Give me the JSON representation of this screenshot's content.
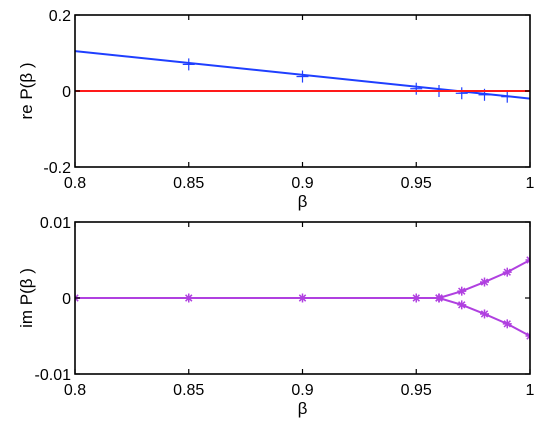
{
  "chart_data": [
    {
      "type": "line",
      "xlabel": "β",
      "ylabel": "re P(β )",
      "xlim": [
        0.8,
        1.0
      ],
      "ylim": [
        -0.2,
        0.2
      ],
      "x_ticks": [
        "0.8",
        "0.85",
        "0.9",
        "0.95",
        "1"
      ],
      "y_ticks": [
        "-0.2",
        "0",
        "0.2"
      ],
      "grid": false,
      "legend": "none",
      "series": [
        {
          "color": "#1f3fff",
          "marker": "plus",
          "line_x": [
            0.8,
            1.0
          ],
          "line_y": [
            0.105,
            -0.02
          ],
          "x": [
            0.85,
            0.9,
            0.95,
            0.96,
            0.97,
            0.98,
            0.99
          ],
          "y": [
            0.07,
            0.038,
            0.006,
            0.0,
            -0.006,
            -0.01,
            -0.015
          ]
        },
        {
          "color": "#ff1a1a",
          "marker": "none",
          "x": [
            0.8,
            1.0
          ],
          "y": [
            0.0,
            0.0
          ]
        }
      ]
    },
    {
      "type": "line",
      "xlabel": "β",
      "ylabel": "im P(β )",
      "xlim": [
        0.8,
        1.0
      ],
      "ylim": [
        -0.01,
        0.01
      ],
      "x_ticks": [
        "0.8",
        "0.85",
        "0.9",
        "0.95",
        "1"
      ],
      "y_ticks": [
        "-0.01",
        "0",
        "0.01"
      ],
      "grid": false,
      "legend": "none",
      "series": [
        {
          "color": "#b040e0",
          "marker": "asterisk",
          "x": [
            0.8,
            0.85,
            0.9,
            0.95,
            0.96
          ],
          "y": [
            0,
            0,
            0,
            0,
            0
          ]
        },
        {
          "color": "#b040e0",
          "marker": "asterisk",
          "x": [
            0.96,
            0.97,
            0.98,
            0.99,
            1.0
          ],
          "y": [
            0,
            0.0009,
            0.0021,
            0.0034,
            0.005
          ]
        },
        {
          "color": "#b040e0",
          "marker": "asterisk",
          "x": [
            0.96,
            0.97,
            0.98,
            0.99,
            1.0
          ],
          "y": [
            0,
            -0.0009,
            -0.0021,
            -0.0034,
            -0.005
          ]
        }
      ]
    }
  ]
}
